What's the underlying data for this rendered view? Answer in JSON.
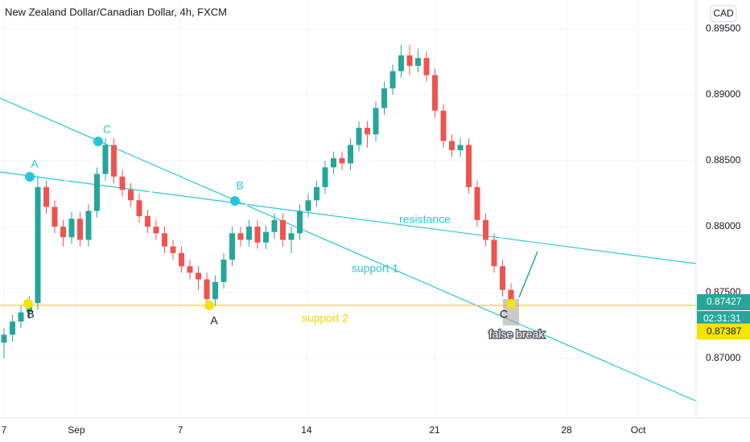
{
  "chart_data": {
    "type": "candlestick",
    "title": "New Zealand Dollar/Canadian Dollar, 4h, FXCM",
    "currency": "CAD",
    "up_color": "#26a69a",
    "down_color": "#ef5350",
    "grid": true,
    "x": [
      0,
      1,
      2,
      3,
      4,
      5,
      6,
      7,
      8,
      9,
      10,
      11,
      12,
      13,
      14,
      15,
      16,
      17,
      18,
      19,
      20,
      21,
      22,
      23,
      24,
      25,
      26,
      27,
      28,
      29,
      30,
      31,
      32,
      33,
      34,
      35,
      36,
      37,
      38,
      39,
      40,
      41,
      42,
      43,
      44,
      45,
      46,
      47,
      48,
      49,
      50,
      51,
      52,
      53,
      54,
      55,
      56,
      57,
      58,
      59,
      60
    ],
    "open": [
      0.8712,
      0.8718,
      0.8728,
      0.8735,
      0.8742,
      0.883,
      0.8815,
      0.88,
      0.8792,
      0.8806,
      0.879,
      0.8812,
      0.884,
      0.8862,
      0.8838,
      0.8828,
      0.882,
      0.8808,
      0.88,
      0.8795,
      0.8785,
      0.878,
      0.877,
      0.8765,
      0.876,
      0.8745,
      0.8758,
      0.8775,
      0.8795,
      0.879,
      0.88,
      0.8788,
      0.8796,
      0.8805,
      0.879,
      0.8795,
      0.8812,
      0.882,
      0.883,
      0.8845,
      0.8852,
      0.8848,
      0.8862,
      0.8875,
      0.887,
      0.889,
      0.8905,
      0.8918,
      0.893,
      0.8922,
      0.8928,
      0.8915,
      0.8888,
      0.8865,
      0.8858,
      0.8862,
      0.883,
      0.8805,
      0.879,
      0.877,
      0.8752
    ],
    "high": [
      0.8723,
      0.8733,
      0.874,
      0.8747,
      0.8838,
      0.8835,
      0.882,
      0.8805,
      0.8811,
      0.8811,
      0.8817,
      0.8845,
      0.8867,
      0.8867,
      0.8843,
      0.8833,
      0.8825,
      0.8813,
      0.8805,
      0.88,
      0.879,
      0.8785,
      0.8775,
      0.877,
      0.8765,
      0.8763,
      0.878,
      0.88,
      0.88,
      0.8805,
      0.8805,
      0.8801,
      0.881,
      0.881,
      0.88,
      0.8817,
      0.8825,
      0.8835,
      0.885,
      0.8857,
      0.8857,
      0.8867,
      0.888,
      0.888,
      0.8895,
      0.891,
      0.8923,
      0.8938,
      0.8938,
      0.8935,
      0.8933,
      0.892,
      0.8893,
      0.887,
      0.8867,
      0.8867,
      0.8835,
      0.881,
      0.8795,
      0.8775,
      0.8757
    ],
    "low": [
      0.87,
      0.8713,
      0.8723,
      0.873,
      0.8737,
      0.881,
      0.8795,
      0.8785,
      0.8787,
      0.8785,
      0.8785,
      0.8807,
      0.8835,
      0.8833,
      0.8823,
      0.8815,
      0.8803,
      0.8795,
      0.879,
      0.878,
      0.8775,
      0.8765,
      0.876,
      0.8752,
      0.874,
      0.874,
      0.8753,
      0.877,
      0.8785,
      0.8785,
      0.8783,
      0.8783,
      0.8791,
      0.8785,
      0.878,
      0.879,
      0.8807,
      0.8815,
      0.8825,
      0.884,
      0.8843,
      0.8843,
      0.8857,
      0.886,
      0.8865,
      0.8885,
      0.89,
      0.8913,
      0.8915,
      0.8917,
      0.891,
      0.8883,
      0.886,
      0.8853,
      0.8853,
      0.8825,
      0.88,
      0.8785,
      0.8765,
      0.8747,
      0.8738
    ],
    "close": [
      0.8718,
      0.8728,
      0.8735,
      0.8742,
      0.883,
      0.8815,
      0.88,
      0.8792,
      0.8806,
      0.879,
      0.8812,
      0.884,
      0.8862,
      0.8838,
      0.8828,
      0.882,
      0.8808,
      0.88,
      0.8795,
      0.8785,
      0.878,
      0.877,
      0.8765,
      0.876,
      0.8745,
      0.8758,
      0.8775,
      0.8795,
      0.879,
      0.88,
      0.8788,
      0.8796,
      0.8805,
      0.879,
      0.8795,
      0.8812,
      0.882,
      0.883,
      0.8845,
      0.8852,
      0.8848,
      0.8862,
      0.8875,
      0.887,
      0.889,
      0.8905,
      0.8918,
      0.893,
      0.8922,
      0.8928,
      0.8915,
      0.8888,
      0.8865,
      0.8858,
      0.8862,
      0.883,
      0.8805,
      0.879,
      0.877,
      0.8752,
      0.87427
    ],
    "xlim": [
      -0.476,
      81.9
    ],
    "xticks": [
      {
        "value": 0,
        "label": "7"
      },
      {
        "value": 8.57,
        "label": "Sep"
      },
      {
        "value": 20.86,
        "label": "7"
      },
      {
        "value": 35.8,
        "label": "14"
      },
      {
        "value": 50.95,
        "label": "21"
      },
      {
        "value": 66.57,
        "label": "28"
      },
      {
        "value": 75.05,
        "label": "Oct"
      }
    ],
    "ylim": [
      0.86549,
      0.8972
    ],
    "yticks": [
      {
        "value": 0.87,
        "label": "0.87000"
      },
      {
        "value": 0.875,
        "label": "0.87500"
      },
      {
        "value": 0.88,
        "label": "0.88000"
      },
      {
        "value": 0.885,
        "label": "0.88500"
      },
      {
        "value": 0.89,
        "label": "0.89000"
      },
      {
        "value": 0.895,
        "label": "0.89500"
      }
    ],
    "countdown": "02:31:31",
    "bid": {
      "value": 0.87387,
      "label": "0.87387"
    },
    "annotations": [
      "A",
      "B",
      "C",
      "A",
      "B",
      "C",
      "resistance",
      "support 1",
      "support 2",
      "false break"
    ]
  }
}
